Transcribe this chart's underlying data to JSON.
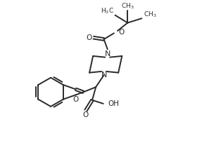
{
  "background_color": "#ffffff",
  "line_color": "#2a2a2a",
  "line_width": 1.4,
  "figsize": [
    2.87,
    2.14
  ],
  "dpi": 100,
  "xlim": [
    0,
    10
  ],
  "ylim": [
    0,
    7.4
  ]
}
